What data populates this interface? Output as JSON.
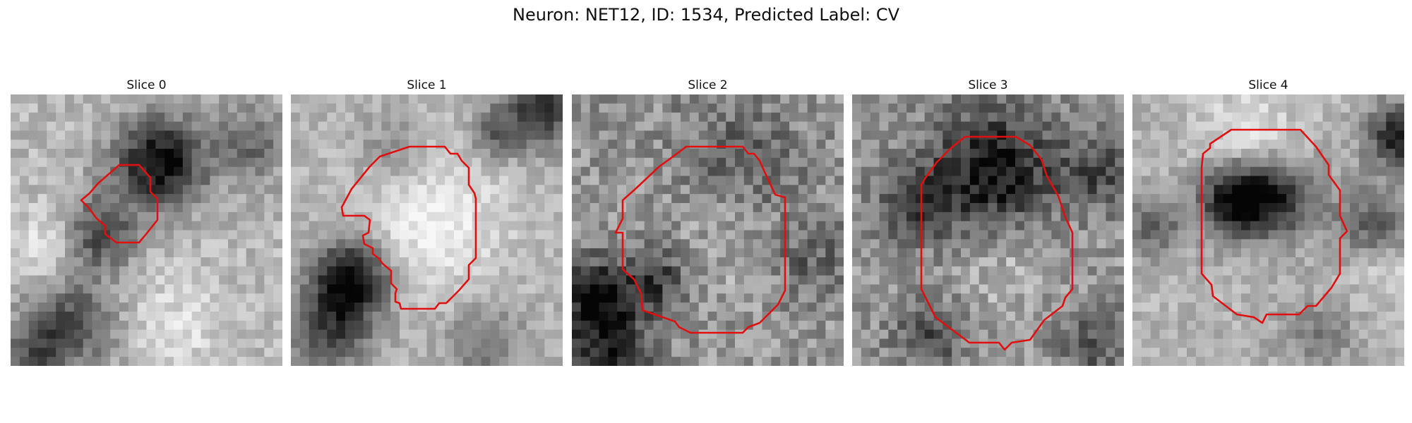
{
  "figure": {
    "title": "Neuron: NET12, ID: 1534, Predicted Label: CV"
  },
  "panels": [
    {
      "title": "Slice 0",
      "contour": "small blob left of center",
      "contour_color": "#e01010"
    },
    {
      "title": "Slice 1",
      "contour": "large rounded region with notch at lower-left",
      "contour_color": "#e01010"
    },
    {
      "title": "Slice 2",
      "contour": "large octagonal region",
      "contour_color": "#e01010"
    },
    {
      "title": "Slice 3",
      "contour": "octagonal region with bottom point",
      "contour_color": "#e01010"
    },
    {
      "title": "Slice 4",
      "contour": "octagonal region, upper-center",
      "contour_color": "#e01010"
    }
  ]
}
